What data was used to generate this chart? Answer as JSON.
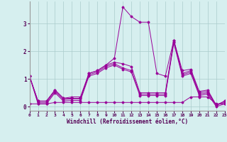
{
  "xlabel": "Windchill (Refroidissement éolien,°C)",
  "background_color": "#d6efef",
  "grid_color": "#aacccc",
  "line_color": "#990099",
  "xlim": [
    0,
    23
  ],
  "ylim": [
    -0.15,
    3.8
  ],
  "xticks": [
    0,
    1,
    2,
    3,
    4,
    5,
    6,
    7,
    8,
    9,
    10,
    11,
    12,
    13,
    14,
    15,
    16,
    17,
    18,
    19,
    20,
    21,
    22,
    23
  ],
  "yticks": [
    0,
    1,
    2,
    3
  ],
  "series": [
    [
      1.1,
      0.2,
      0.2,
      0.6,
      0.3,
      0.35,
      0.35,
      1.2,
      1.3,
      1.5,
      1.75,
      3.6,
      3.25,
      3.05,
      3.05,
      1.2,
      1.1,
      2.4,
      1.3,
      1.35,
      0.55,
      0.6,
      0.05,
      0.2
    ],
    [
      1.1,
      0.2,
      0.2,
      0.6,
      0.3,
      0.3,
      0.3,
      1.2,
      1.3,
      1.5,
      1.6,
      1.55,
      1.45,
      0.5,
      0.5,
      0.5,
      0.5,
      2.4,
      1.2,
      1.3,
      0.5,
      0.55,
      0.05,
      0.2
    ],
    [
      1.1,
      0.15,
      0.15,
      0.55,
      0.25,
      0.28,
      0.28,
      1.15,
      1.25,
      1.45,
      1.55,
      1.4,
      1.3,
      0.45,
      0.45,
      0.45,
      0.45,
      2.35,
      1.15,
      1.25,
      0.45,
      0.5,
      0.05,
      0.15
    ],
    [
      1.1,
      0.1,
      0.1,
      0.5,
      0.2,
      0.22,
      0.22,
      1.1,
      1.2,
      1.4,
      1.5,
      1.35,
      1.25,
      0.4,
      0.4,
      0.4,
      0.4,
      2.3,
      1.1,
      1.2,
      0.4,
      0.45,
      0.0,
      0.1
    ],
    [
      0.1,
      0.1,
      0.1,
      0.15,
      0.15,
      0.15,
      0.15,
      0.15,
      0.15,
      0.15,
      0.15,
      0.15,
      0.15,
      0.15,
      0.15,
      0.15,
      0.15,
      0.15,
      0.15,
      0.35,
      0.35,
      0.35,
      0.1,
      0.1
    ]
  ]
}
